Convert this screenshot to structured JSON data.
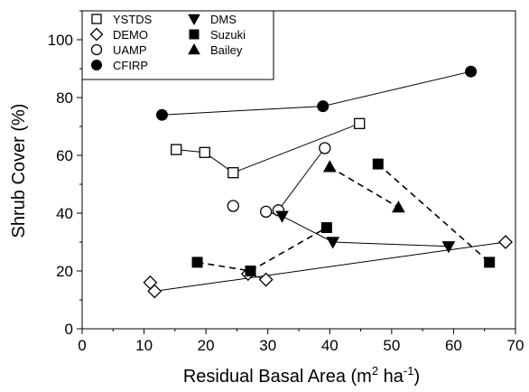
{
  "chart_data": {
    "type": "scatter",
    "title": "",
    "xlabel": "Residual Basal Area (m",
    "xlabel_sup1": "2",
    "xlabel_mid": " ha",
    "xlabel_sup2": "-1",
    "xlabel_end": ")",
    "ylabel": "Shrub Cover (%)",
    "xlim": [
      0,
      70
    ],
    "ylim": [
      0,
      110
    ],
    "xticks": [
      0,
      10,
      20,
      30,
      40,
      50,
      60,
      70
    ],
    "yticks": [
      0,
      20,
      40,
      60,
      80,
      100
    ],
    "xtick_labels": [
      "0",
      "10",
      "20",
      "30",
      "40",
      "50",
      "60",
      "70"
    ],
    "ytick_labels": [
      "0",
      "20",
      "40",
      "60",
      "80",
      "100"
    ],
    "grid": false,
    "legend_position": "top-left",
    "series": [
      {
        "name": "YSTDS",
        "marker": "open-square",
        "line": "solid",
        "points": [
          [
            15.2,
            62
          ],
          [
            19.8,
            61
          ],
          [
            24.4,
            54
          ],
          [
            44.8,
            71
          ]
        ],
        "segments": [
          [
            0,
            1
          ],
          [
            1,
            2
          ],
          [
            2,
            3
          ]
        ]
      },
      {
        "name": "DEMO",
        "marker": "open-diamond",
        "line": "solid",
        "points": [
          [
            11.0,
            16
          ],
          [
            11.7,
            13
          ],
          [
            26.8,
            19
          ],
          [
            29.7,
            17
          ],
          [
            68.4,
            30
          ]
        ],
        "segments": [
          [
            0,
            1
          ],
          [
            2,
            3
          ],
          [
            1,
            4
          ]
        ]
      },
      {
        "name": "UAMP",
        "marker": "open-circle",
        "line": "solid",
        "points": [
          [
            24.4,
            42.5
          ],
          [
            29.7,
            40.5
          ],
          [
            31.7,
            41
          ],
          [
            39.2,
            62.5
          ]
        ],
        "segments": [
          [
            2,
            3
          ]
        ]
      },
      {
        "name": "CFIRP",
        "marker": "filled-circle",
        "line": "solid",
        "points": [
          [
            12.9,
            74
          ],
          [
            38.9,
            77
          ],
          [
            62.8,
            89
          ]
        ],
        "segments": [
          [
            0,
            1
          ],
          [
            1,
            2
          ]
        ]
      },
      {
        "name": "DMS",
        "marker": "filled-triangle-down",
        "line": "solid",
        "points": [
          [
            32.3,
            39
          ],
          [
            40.5,
            30
          ],
          [
            59.2,
            28.5
          ]
        ],
        "segments": [
          [
            0,
            1
          ],
          [
            1,
            2
          ]
        ]
      },
      {
        "name": "Suzuki",
        "marker": "filled-square",
        "line": "dashed",
        "points": [
          [
            18.6,
            23
          ],
          [
            27.2,
            20
          ],
          [
            39.5,
            35
          ],
          [
            47.8,
            57
          ],
          [
            65.8,
            23
          ]
        ],
        "segments": [
          [
            0,
            1
          ],
          [
            1,
            2
          ],
          [
            3,
            4
          ]
        ]
      },
      {
        "name": "Bailey",
        "marker": "filled-triangle-up",
        "line": "dashed",
        "points": [
          [
            40.0,
            56
          ],
          [
            51.1,
            42
          ]
        ],
        "segments": [
          [
            0,
            1
          ]
        ]
      }
    ],
    "extra_lines": [
      {
        "from": [
          29.7,
          40.5
        ],
        "to": [
          32.3,
          39
        ],
        "style": "solid"
      }
    ]
  }
}
